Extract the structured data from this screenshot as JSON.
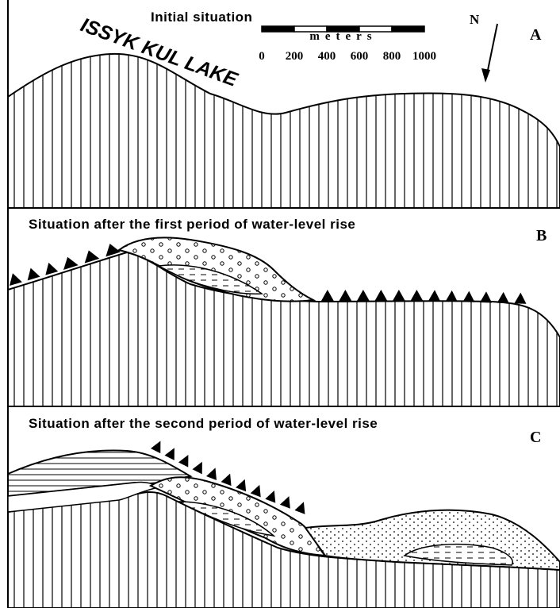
{
  "panels": [
    {
      "title": "Initial situation",
      "label": "A"
    },
    {
      "title": "Situation after the first period of water-level rise",
      "label": "B"
    },
    {
      "title": "Situation after the second period of water-level rise",
      "label": "C"
    }
  ],
  "lake_label": "ISSYK KUL LAKE",
  "scale": {
    "unit": "meters",
    "ticks": [
      "0",
      "200",
      "400",
      "600",
      "800",
      "1000"
    ]
  },
  "north": "N"
}
